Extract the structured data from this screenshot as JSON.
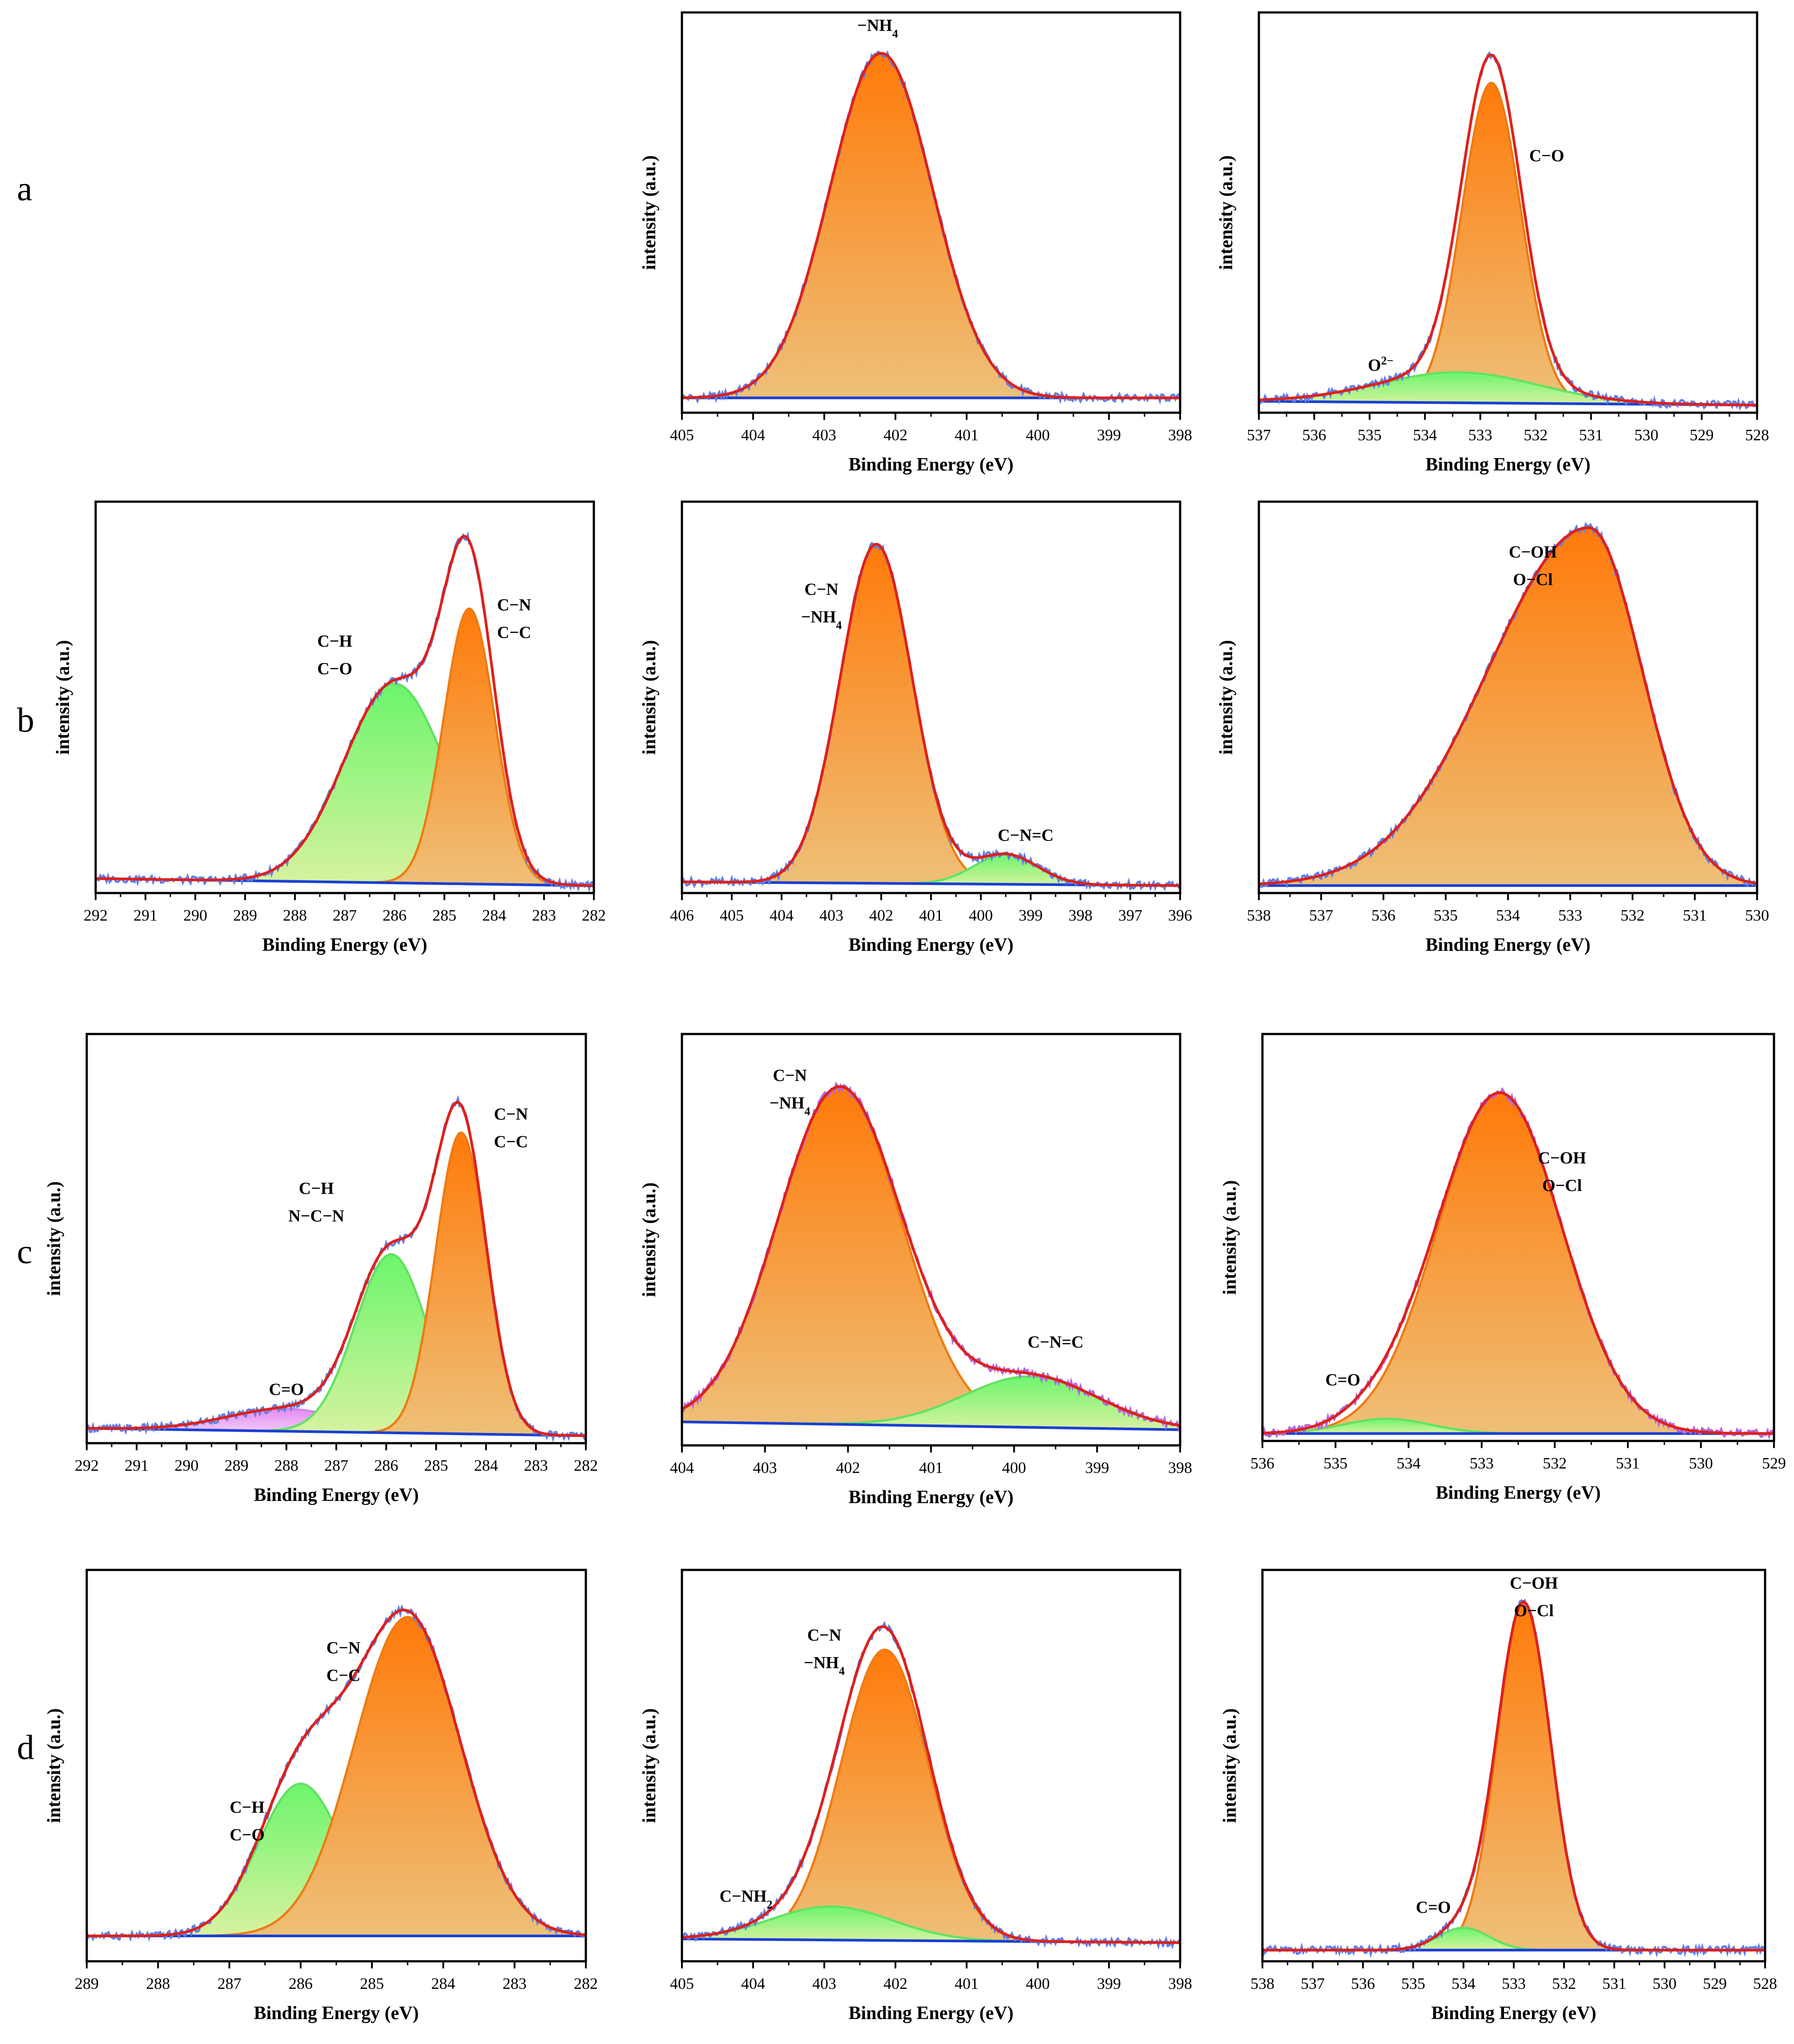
{
  "figure": {
    "row_labels": [
      "a",
      "b",
      "c",
      "d"
    ]
  },
  "colors": {
    "raw": "#5f7fe8",
    "raw_alt": "#b266e0",
    "fit": "#e0201a",
    "baseline": "#1b3fd4",
    "orange_top": "#ff7a0a",
    "orange_bottom": "#eec078",
    "orange_edge": "#f07a10",
    "green_top": "#6cf56c",
    "green_bottom": "#d8f2a0",
    "green_edge": "#62e262",
    "violet_top": "#e58cf2",
    "violet_bottom": "#f2d3f7",
    "violet_edge": "#d583ee"
  },
  "chart_data": [
    {
      "id": "a-N1s",
      "row": "a",
      "col": 1,
      "type": "area",
      "xlabel": "Binding Energy (eV)",
      "ylabel": "intensity (a.u.)",
      "xlim": [
        405,
        398
      ],
      "xticks": [
        405,
        404,
        403,
        402,
        401,
        400,
        399,
        398
      ],
      "ylim": [
        0,
        1.08
      ],
      "baseline": [
        0.04,
        0.04
      ],
      "raw_color": "raw",
      "peaks": [
        {
          "center": 402.2,
          "fwhm": 1.7,
          "height": 0.93,
          "color": "orange",
          "label": "−NH4"
        }
      ],
      "labels": [
        {
          "lines": [
            "−NH4"
          ],
          "x": 402.25,
          "y": 1.03
        }
      ]
    },
    {
      "id": "a-O1s",
      "row": "a",
      "col": 2,
      "type": "area",
      "xlabel": "Binding Energy (eV)",
      "ylabel": "intensity (a.u.)",
      "xlim": [
        537,
        528
      ],
      "xticks": [
        537,
        536,
        535,
        534,
        533,
        532,
        531,
        530,
        529,
        528
      ],
      "ylim": [
        0,
        1.05
      ],
      "baseline": [
        0.03,
        0.02
      ],
      "raw_color": "raw",
      "peaks": [
        {
          "center": 532.8,
          "fwhm": 1.25,
          "height": 0.84,
          "color": "orange",
          "label": "C−O"
        },
        {
          "center": 533.4,
          "fwhm": 3.4,
          "height": 0.08,
          "color": "green",
          "label": "O2−"
        }
      ],
      "labels": [
        {
          "lines": [
            "C−O"
          ],
          "x": 531.8,
          "y": 0.66
        },
        {
          "lines": [
            "O2−"
          ],
          "x": 534.8,
          "y": 0.11
        }
      ]
    },
    {
      "id": "b-C1s",
      "row": "b",
      "col": 0,
      "type": "area",
      "xlabel": "Binding Energy (eV)",
      "ylabel": "intensity (a.u.)",
      "xlim": [
        292,
        282
      ],
      "xticks": [
        292,
        291,
        290,
        289,
        288,
        287,
        286,
        285,
        284,
        283,
        282
      ],
      "ylim": [
        0,
        1.08
      ],
      "baseline": [
        0.04,
        0.02
      ],
      "raw_color": "raw",
      "peaks": [
        {
          "center": 286.0,
          "fwhm": 2.4,
          "height": 0.55,
          "color": "green",
          "label": "C−H C−O"
        },
        {
          "center": 284.5,
          "fwhm": 1.2,
          "height": 0.76,
          "color": "orange",
          "label": "C−N C−C"
        }
      ],
      "labels": [
        {
          "lines": [
            "C−H",
            "C−O"
          ],
          "x": 287.2,
          "y": 0.68
        },
        {
          "lines": [
            "C−N",
            "C−C"
          ],
          "x": 283.6,
          "y": 0.78
        }
      ]
    },
    {
      "id": "b-N1s",
      "row": "b",
      "col": 1,
      "type": "area",
      "xlabel": "Binding Energy (eV)",
      "ylabel": "intensity (a.u.)",
      "xlim": [
        406,
        396
      ],
      "xticks": [
        406,
        405,
        404,
        403,
        402,
        401,
        400,
        399,
        398,
        397,
        396
      ],
      "ylim": [
        0,
        1.05
      ],
      "baseline": [
        0.03,
        0.02
      ],
      "raw_color": "raw",
      "peaks": [
        {
          "center": 402.1,
          "fwhm": 1.7,
          "height": 0.91,
          "color": "orange",
          "label": "C−N −NH4"
        },
        {
          "center": 399.5,
          "fwhm": 1.5,
          "height": 0.08,
          "color": "green",
          "label": "C−N=C"
        }
      ],
      "labels": [
        {
          "lines": [
            "C−N",
            "−NH4"
          ],
          "x": 403.2,
          "y": 0.8
        },
        {
          "lines": [
            "C−N=C"
          ],
          "x": 399.1,
          "y": 0.14
        }
      ]
    },
    {
      "id": "b-O1s",
      "row": "b",
      "col": 2,
      "type": "area",
      "xlabel": "Binding Energy (eV)",
      "ylabel": "intensity (a.u.)",
      "xlim": [
        538,
        530
      ],
      "xticks": [
        538,
        537,
        536,
        535,
        534,
        533,
        532,
        531,
        530
      ],
      "ylim": [
        0,
        1.05
      ],
      "baseline": [
        0.02,
        0.02
      ],
      "raw_color": "raw",
      "peaks": [
        {
          "center": 532.7,
          "fwhm": 2.0,
          "height": 0.96,
          "color": "orange",
          "label": "C−OH O−Cl",
          "tail": 0.9
        }
      ],
      "labels": [
        {
          "lines": [
            "C−OH",
            "O−Cl"
          ],
          "x": 533.6,
          "y": 0.9
        }
      ]
    },
    {
      "id": "c-C1s",
      "row": "c",
      "col": 0,
      "type": "area",
      "xlabel": "Binding Energy (eV)",
      "ylabel": "intensity (a.u.)",
      "xlim": [
        292,
        282
      ],
      "xticks": [
        292,
        291,
        290,
        289,
        288,
        287,
        286,
        285,
        284,
        283,
        282
      ],
      "ylim": [
        0,
        1.1
      ],
      "baseline": [
        0.04,
        0.02
      ],
      "raw_color": "raw",
      "peaks": [
        {
          "center": 288.0,
          "fwhm": 2.8,
          "height": 0.06,
          "color": "violet",
          "label": "C=O"
        },
        {
          "center": 285.9,
          "fwhm": 1.7,
          "height": 0.48,
          "color": "green",
          "label": "C−H N−C−N"
        },
        {
          "center": 284.5,
          "fwhm": 1.2,
          "height": 0.81,
          "color": "orange",
          "label": "C−N C−C"
        }
      ],
      "labels": [
        {
          "lines": [
            "C=O"
          ],
          "x": 288.0,
          "y": 0.13
        },
        {
          "lines": [
            "C−H",
            "N−C−N"
          ],
          "x": 287.4,
          "y": 0.67
        },
        {
          "lines": [
            "C−N",
            "C−C"
          ],
          "x": 283.5,
          "y": 0.87
        }
      ]
    },
    {
      "id": "c-N1s",
      "row": "c",
      "col": 1,
      "type": "area",
      "xlabel": "Binding Energy (eV)",
      "ylabel": "intensity (a.u.)",
      "xlim": [
        404,
        398
      ],
      "xticks": [
        404,
        403,
        402,
        401,
        400,
        399,
        398
      ],
      "ylim": [
        0,
        1.05
      ],
      "baseline": [
        0.06,
        0.04
      ],
      "raw_color": "raw_alt",
      "peaks": [
        {
          "center": 402.1,
          "fwhm": 1.75,
          "height": 0.86,
          "color": "orange",
          "label": "C−N −NH4"
        },
        {
          "center": 399.8,
          "fwhm": 1.9,
          "height": 0.13,
          "color": "green",
          "label": "C−N=C"
        }
      ],
      "labels": [
        {
          "lines": [
            "C−N",
            "−NH4"
          ],
          "x": 402.7,
          "y": 0.93
        },
        {
          "lines": [
            "C−N=C"
          ],
          "x": 399.5,
          "y": 0.25
        }
      ]
    },
    {
      "id": "c-O1s",
      "row": "c",
      "col": 2,
      "type": "area",
      "xlabel": "Binding Energy (eV)",
      "ylabel": "intensity (a.u.)",
      "xlim": [
        536,
        529
      ],
      "xticks": [
        536,
        535,
        534,
        533,
        532,
        531,
        530,
        529
      ],
      "ylim": [
        0,
        1.1
      ],
      "baseline": [
        0.02,
        0.02
      ],
      "raw_color": "raw_alt",
      "peaks": [
        {
          "center": 532.75,
          "fwhm": 2.0,
          "height": 0.92,
          "color": "orange",
          "label": "C−OH O−Cl"
        },
        {
          "center": 534.3,
          "fwhm": 1.4,
          "height": 0.04,
          "color": "green",
          "label": "C=O"
        }
      ],
      "labels": [
        {
          "lines": [
            "C−OH",
            "O−Cl"
          ],
          "x": 531.9,
          "y": 0.75
        },
        {
          "lines": [
            "C=O"
          ],
          "x": 534.9,
          "y": 0.15
        }
      ]
    },
    {
      "id": "d-C1s",
      "row": "d",
      "col": 0,
      "type": "area",
      "xlabel": "Binding Energy (eV)",
      "ylabel": "intensity (a.u.)",
      "xlim": [
        289,
        282
      ],
      "xticks": [
        289,
        288,
        287,
        286,
        285,
        284,
        283,
        282
      ],
      "ylim": [
        0,
        1.08
      ],
      "baseline": [
        0.07,
        0.07
      ],
      "raw_color": "raw",
      "peaks": [
        {
          "center": 286.0,
          "fwhm": 1.4,
          "height": 0.42,
          "color": "green",
          "label": "C−H C−O"
        },
        {
          "center": 284.5,
          "fwhm": 1.75,
          "height": 0.88,
          "color": "orange",
          "label": "C−N C−C"
        }
      ],
      "labels": [
        {
          "lines": [
            "C−H",
            "C−O"
          ],
          "x": 286.75,
          "y": 0.41
        },
        {
          "lines": [
            "C−N",
            "C−C"
          ],
          "x": 285.4,
          "y": 0.85
        }
      ]
    },
    {
      "id": "d-N1s",
      "row": "d",
      "col": 1,
      "type": "area",
      "xlabel": "Binding Energy (eV)",
      "ylabel": "intensity (a.u.)",
      "xlim": [
        405,
        398
      ],
      "xticks": [
        405,
        404,
        403,
        402,
        401,
        400,
        399,
        398
      ],
      "ylim": [
        0,
        1.05
      ],
      "baseline": [
        0.06,
        0.05
      ],
      "raw_color": "raw",
      "peaks": [
        {
          "center": 402.15,
          "fwhm": 1.45,
          "height": 0.78,
          "color": "orange",
          "label": "C−N −NH4"
        },
        {
          "center": 402.9,
          "fwhm": 2.0,
          "height": 0.09,
          "color": "green",
          "label": "C−NH2"
        }
      ],
      "labels": [
        {
          "lines": [
            "C−N",
            "−NH4"
          ],
          "x": 403.0,
          "y": 0.86
        },
        {
          "lines": [
            "C−NH2"
          ],
          "x": 404.1,
          "y": 0.16
        }
      ]
    },
    {
      "id": "d-O1s",
      "row": "d",
      "col": 2,
      "type": "area",
      "xlabel": "Binding Energy (eV)",
      "ylabel": "intensity (a.u.)",
      "xlim": [
        538,
        528
      ],
      "xticks": [
        538,
        537,
        536,
        535,
        534,
        533,
        532,
        531,
        530,
        529,
        528
      ],
      "ylim": [
        0,
        1.05
      ],
      "baseline": [
        0.03,
        0.03
      ],
      "raw_color": "raw",
      "peaks": [
        {
          "center": 532.8,
          "fwhm": 1.25,
          "height": 0.93,
          "color": "orange",
          "label": "C−OH O−Cl"
        },
        {
          "center": 534.0,
          "fwhm": 1.2,
          "height": 0.06,
          "color": "green",
          "label": "C=O"
        }
      ],
      "labels": [
        {
          "lines": [
            "C−OH",
            "O−Cl"
          ],
          "x": 532.6,
          "y": 1.0
        },
        {
          "lines": [
            "C=O"
          ],
          "x": 534.6,
          "y": 0.13
        }
      ]
    }
  ]
}
